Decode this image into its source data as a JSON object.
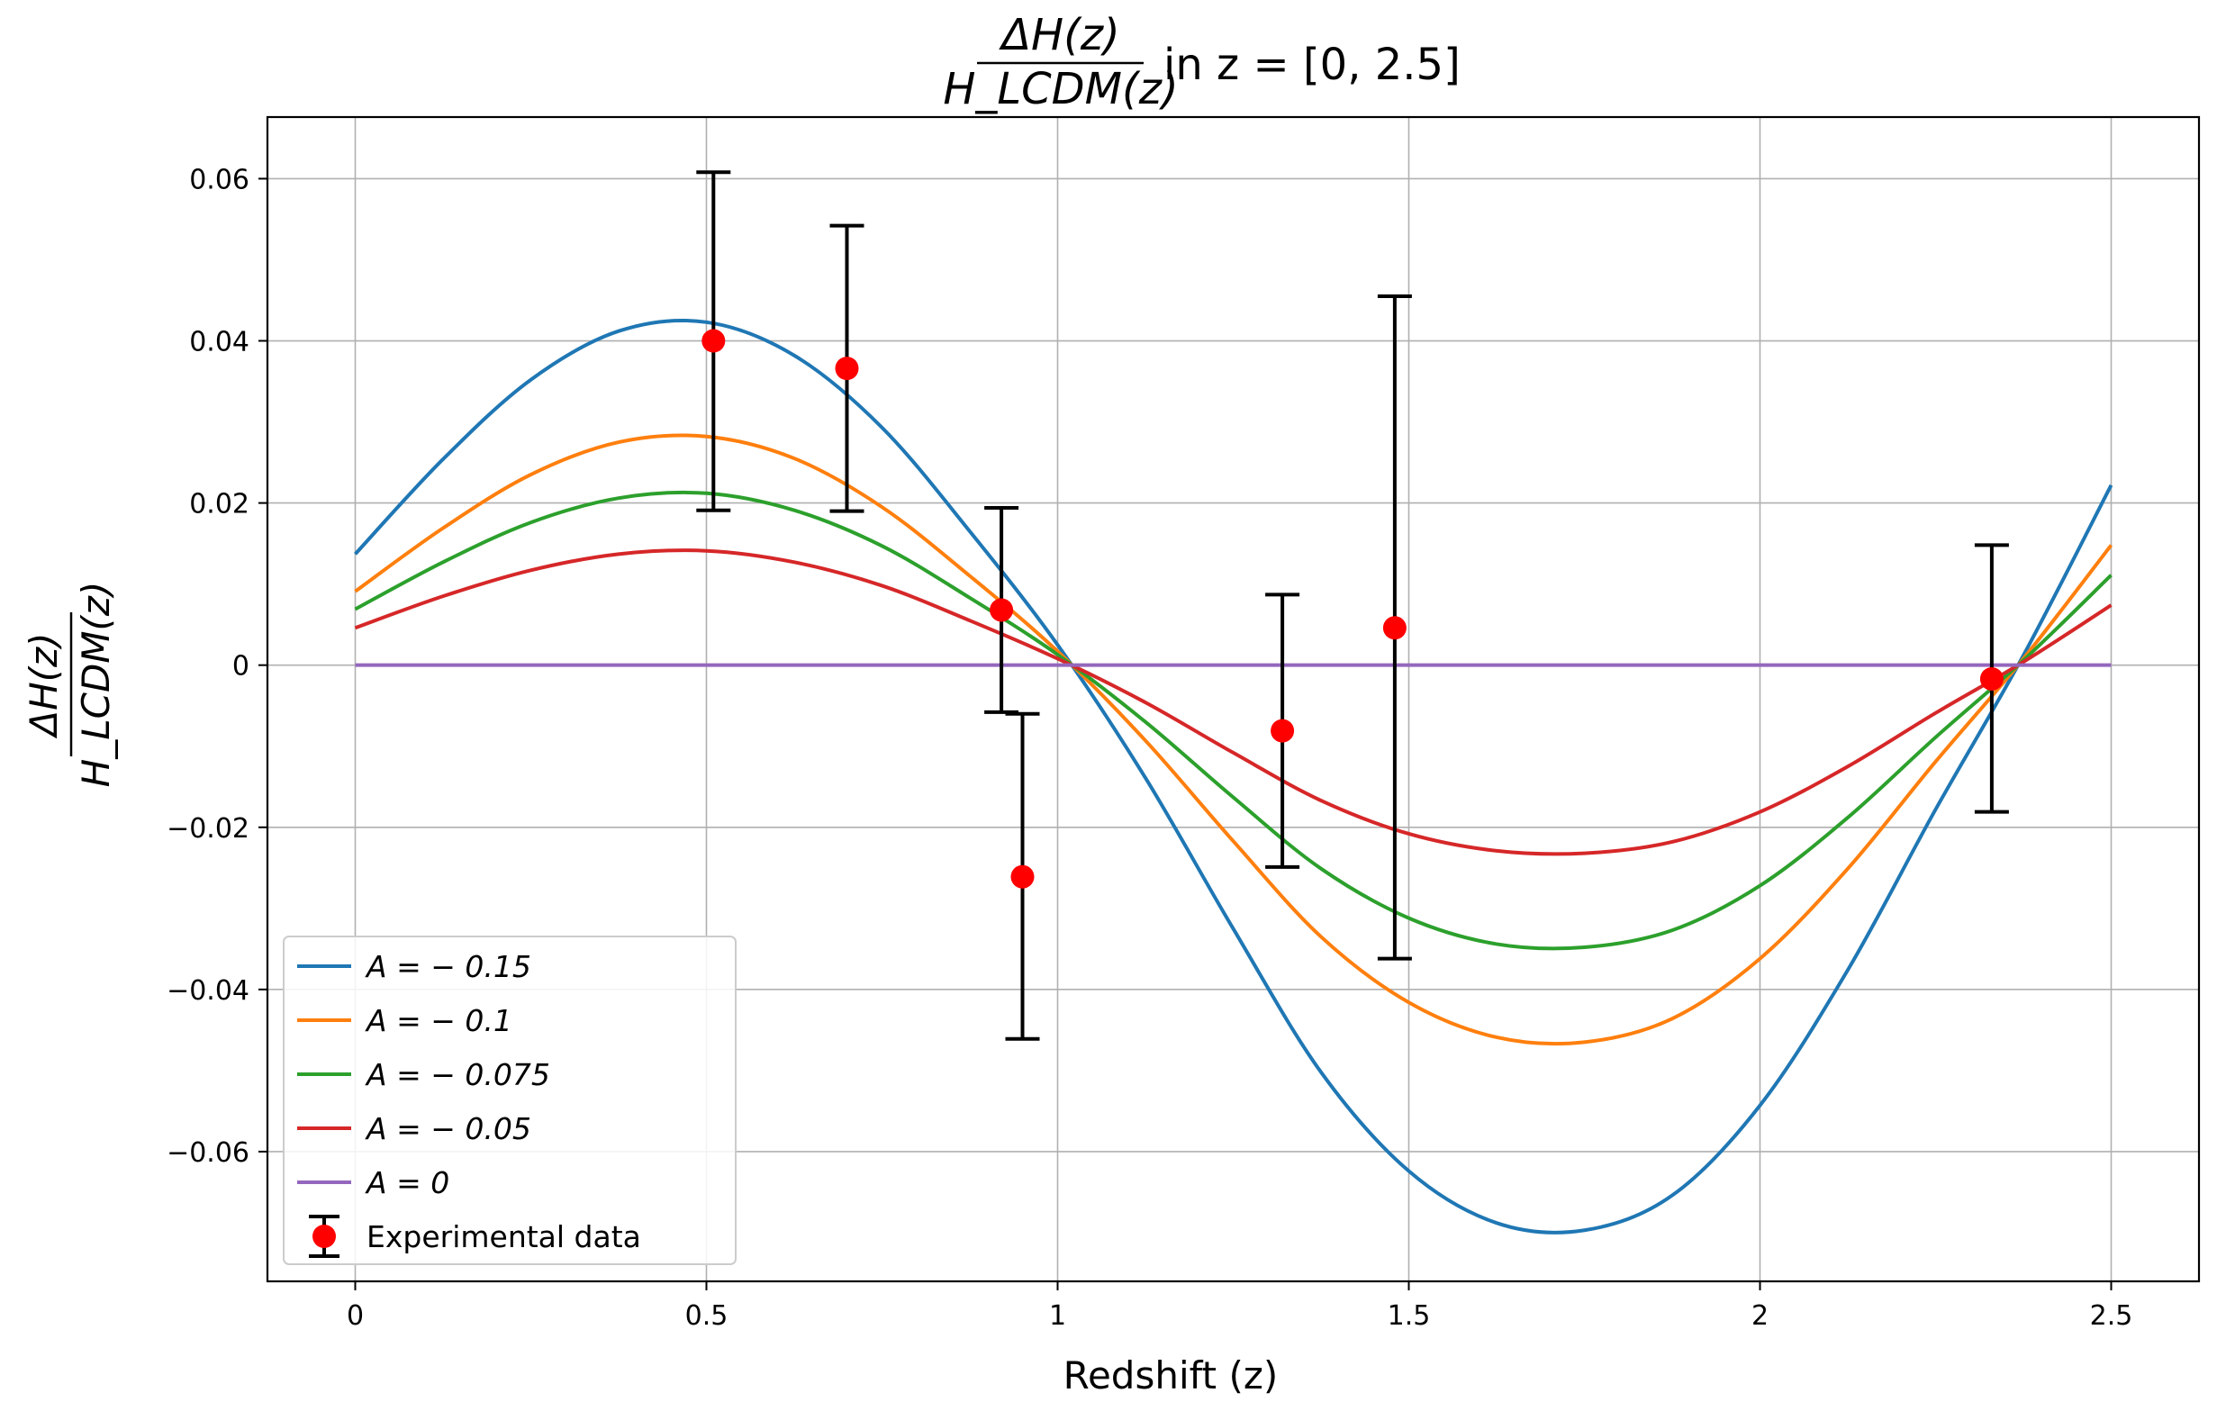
{
  "chart_data": {
    "type": "line",
    "title": {
      "frac_num": "ΔH(z)",
      "frac_den": "H_LCDM(z)",
      "rest": "in z = [0, 2.5]"
    },
    "xlabel": "Redshift (z)",
    "ylabel": {
      "frac_num": "ΔH(z)",
      "frac_den": "H_LCDM(z)"
    },
    "xlim": [
      -0.125,
      2.625
    ],
    "ylim": [
      -0.076,
      0.0676
    ],
    "xticks": [
      0,
      0.5,
      1,
      1.5,
      2,
      2.5
    ],
    "xtick_labels": [
      "0",
      "0.5",
      "1",
      "1.5",
      "2",
      "2.5"
    ],
    "yticks": [
      -0.06,
      -0.04,
      -0.02,
      0,
      0.02,
      0.04,
      0.06
    ],
    "ytick_labels": [
      "−0.06",
      "−0.04",
      "−0.02",
      "0",
      "0.02",
      "0.04",
      "0.06"
    ],
    "grid": true,
    "legend_position": "lower-left",
    "x": [
      0,
      0.125,
      0.25,
      0.375,
      0.5,
      0.625,
      0.75,
      0.875,
      1.0,
      1.125,
      1.25,
      1.375,
      1.5,
      1.625,
      1.75,
      1.875,
      2.0,
      2.125,
      2.25,
      2.375,
      2.5
    ],
    "series": [
      {
        "name": "A = − 0.15",
        "color": "#1f77b4",
        "values": [
          0.0137,
          0.0254,
          0.0352,
          0.0412,
          0.0423,
          0.0382,
          0.0293,
          0.0165,
          0.0025,
          -0.0139,
          -0.0325,
          -0.0502,
          -0.0624,
          -0.0688,
          -0.0697,
          -0.0654,
          -0.0543,
          -0.0376,
          -0.0178,
          0.0012,
          0.0222
        ]
      },
      {
        "name": "A = − 0.1",
        "color": "#ff7f0e",
        "values": [
          0.0091,
          0.0169,
          0.0235,
          0.0275,
          0.0282,
          0.0255,
          0.0195,
          0.011,
          0.0017,
          -0.0093,
          -0.0217,
          -0.0335,
          -0.0416,
          -0.0459,
          -0.0465,
          -0.0436,
          -0.0362,
          -0.0251,
          -0.0119,
          0.0008,
          0.0148
        ]
      },
      {
        "name": "A = − 0.075",
        "color": "#2ca02c",
        "values": [
          0.0069,
          0.0127,
          0.0176,
          0.0206,
          0.0212,
          0.0191,
          0.0147,
          0.0083,
          0.0013,
          -0.007,
          -0.0163,
          -0.0251,
          -0.0312,
          -0.0344,
          -0.0348,
          -0.0327,
          -0.0272,
          -0.0188,
          -0.0089,
          0.0006,
          0.0111
        ]
      },
      {
        "name": "A = − 0.05",
        "color": "#d62728",
        "values": [
          0.0046,
          0.0085,
          0.0117,
          0.0137,
          0.0141,
          0.0127,
          0.0098,
          0.0055,
          0.0008,
          -0.0046,
          -0.0108,
          -0.0167,
          -0.0208,
          -0.0229,
          -0.0232,
          -0.0218,
          -0.0181,
          -0.0125,
          -0.0059,
          0.0004,
          0.0074
        ]
      },
      {
        "name": "A = 0",
        "color": "#9467bd",
        "values": [
          0,
          0,
          0,
          0,
          0,
          0,
          0,
          0,
          0,
          0,
          0,
          0,
          0,
          0,
          0,
          0,
          0,
          0,
          0,
          0,
          0
        ]
      }
    ],
    "experimental": {
      "name": "Experimental data",
      "color": "#ff0000",
      "points": [
        {
          "x": 0.51,
          "y": 0.04,
          "yerr_low": 0.0191,
          "yerr_high": 0.0608
        },
        {
          "x": 0.7,
          "y": 0.0366,
          "yerr_low": 0.019,
          "yerr_high": 0.0542
        },
        {
          "x": 0.92,
          "y": 0.0068,
          "yerr_low": -0.0058,
          "yerr_high": 0.0194
        },
        {
          "x": 0.95,
          "y": -0.0261,
          "yerr_low": -0.0461,
          "yerr_high": -0.006
        },
        {
          "x": 1.32,
          "y": -0.0081,
          "yerr_low": -0.0249,
          "yerr_high": 0.0087
        },
        {
          "x": 1.48,
          "y": 0.0046,
          "yerr_low": -0.0362,
          "yerr_high": 0.0455
        },
        {
          "x": 2.33,
          "y": -0.0017,
          "yerr_low": -0.0181,
          "yerr_high": 0.0148
        }
      ]
    }
  }
}
